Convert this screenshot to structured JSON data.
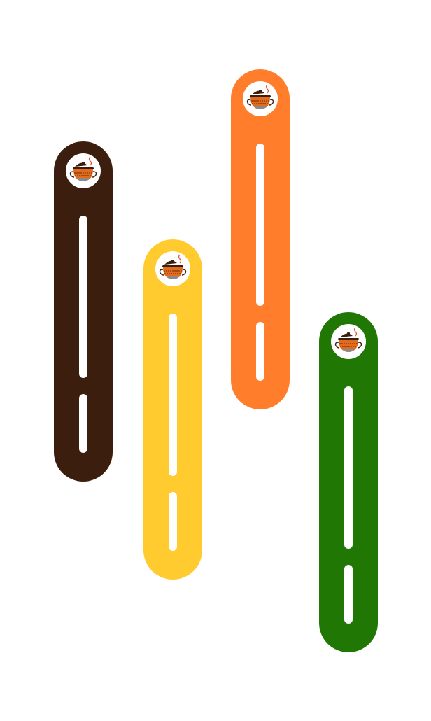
{
  "pills": [
    {
      "color": "#3b1e0e"
    },
    {
      "color": "#ffcb2f"
    },
    {
      "color": "#ff7d2b"
    },
    {
      "color": "#217703"
    }
  ]
}
